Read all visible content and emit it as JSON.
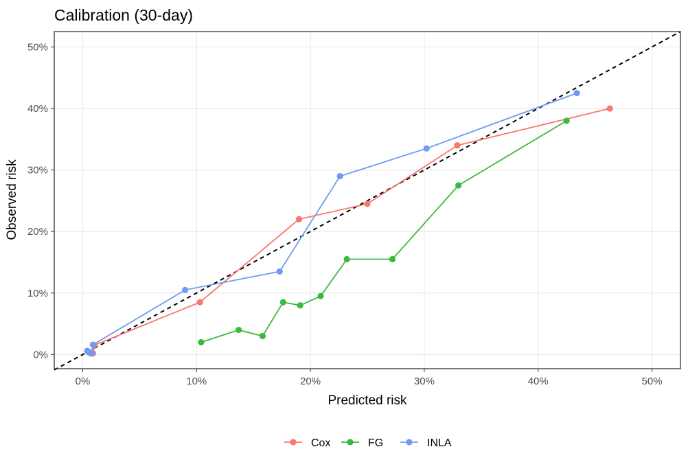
{
  "chart_data": {
    "type": "line",
    "title": "Calibration (30-day)",
    "xlabel": "Predicted risk",
    "ylabel": "Observed risk",
    "xlim": [
      -0.025,
      0.525
    ],
    "ylim": [
      -0.023,
      0.525
    ],
    "xticks": [
      {
        "value": 0.0,
        "label": "0%"
      },
      {
        "value": 0.1,
        "label": "10%"
      },
      {
        "value": 0.2,
        "label": "20%"
      },
      {
        "value": 0.3,
        "label": "30%"
      },
      {
        "value": 0.4,
        "label": "40%"
      },
      {
        "value": 0.5,
        "label": "50%"
      }
    ],
    "yticks": [
      {
        "value": 0.0,
        "label": "0%"
      },
      {
        "value": 0.1,
        "label": "10%"
      },
      {
        "value": 0.2,
        "label": "20%"
      },
      {
        "value": 0.3,
        "label": "30%"
      },
      {
        "value": 0.4,
        "label": "40%"
      },
      {
        "value": 0.5,
        "label": "50%"
      }
    ],
    "grid": true,
    "reference_line": {
      "style": "dashed",
      "color": "#000000",
      "slope": 1,
      "intercept": 0
    },
    "legend_position": "bottom",
    "series": [
      {
        "name": "Cox",
        "color": "#F8766D",
        "points": [
          [
            0.005,
            0.004
          ],
          [
            0.007,
            0.002
          ],
          [
            0.008,
            0.003
          ],
          [
            0.009,
            0.002
          ],
          [
            0.01,
            0.015
          ],
          [
            0.103,
            0.085
          ],
          [
            0.19,
            0.22
          ],
          [
            0.25,
            0.245
          ],
          [
            0.329,
            0.34
          ],
          [
            0.463,
            0.4
          ]
        ]
      },
      {
        "name": "FG",
        "color": "#3CB93C",
        "points": [
          [
            0.104,
            0.02
          ],
          [
            0.137,
            0.04
          ],
          [
            0.158,
            0.03
          ],
          [
            0.176,
            0.085
          ],
          [
            0.191,
            0.08
          ],
          [
            0.209,
            0.095
          ],
          [
            0.232,
            0.155
          ],
          [
            0.272,
            0.155
          ],
          [
            0.33,
            0.275
          ],
          [
            0.425,
            0.38
          ]
        ]
      },
      {
        "name": "INLA",
        "color": "#6E9CF2",
        "points": [
          [
            0.004,
            0.006
          ],
          [
            0.006,
            0.004
          ],
          [
            0.007,
            0.002
          ],
          [
            0.008,
            0.002
          ],
          [
            0.009,
            0.016
          ],
          [
            0.09,
            0.105
          ],
          [
            0.173,
            0.135
          ],
          [
            0.226,
            0.29
          ],
          [
            0.302,
            0.335
          ],
          [
            0.434,
            0.425
          ]
        ]
      }
    ]
  }
}
